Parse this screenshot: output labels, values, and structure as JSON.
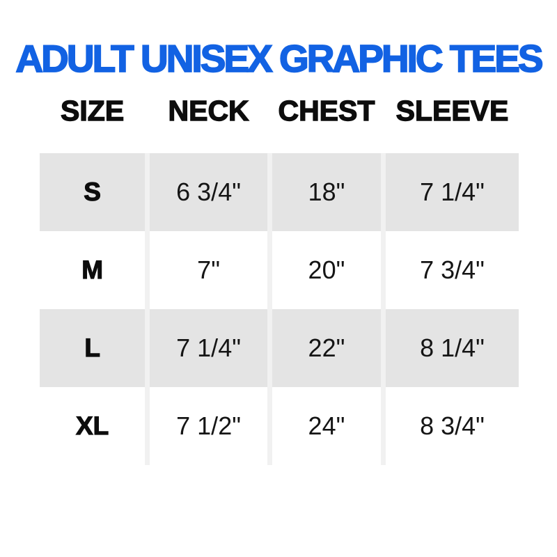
{
  "page": {
    "title": "ADULT UNISEX GRAPHIC TEES"
  },
  "colors": {
    "title_blue": "#1262e3",
    "row_shade_gray": "#e4e4e4",
    "column_separator": "#f1f1f1",
    "text_black": "#0d0d0d",
    "background": "#ffffff"
  },
  "chart_data": {
    "type": "table",
    "title": "ADULT UNISEX GRAPHIC TEES",
    "columns": [
      "SIZE",
      "NECK",
      "CHEST",
      "SLEEVE"
    ],
    "rows": [
      [
        "S",
        "6 3/4\"",
        "18\"",
        "7 1/4\""
      ],
      [
        "M",
        "7\"",
        "20\"",
        "7 3/4\""
      ],
      [
        "L",
        "7 1/4\"",
        "22\"",
        "8 1/4\""
      ],
      [
        "XL",
        "7 1/2\"",
        "24\"",
        "8 3/4\""
      ]
    ],
    "layout": {
      "shaded_rows": [
        0,
        2
      ],
      "grid": "vertical-separators-only",
      "legend": "none"
    }
  }
}
